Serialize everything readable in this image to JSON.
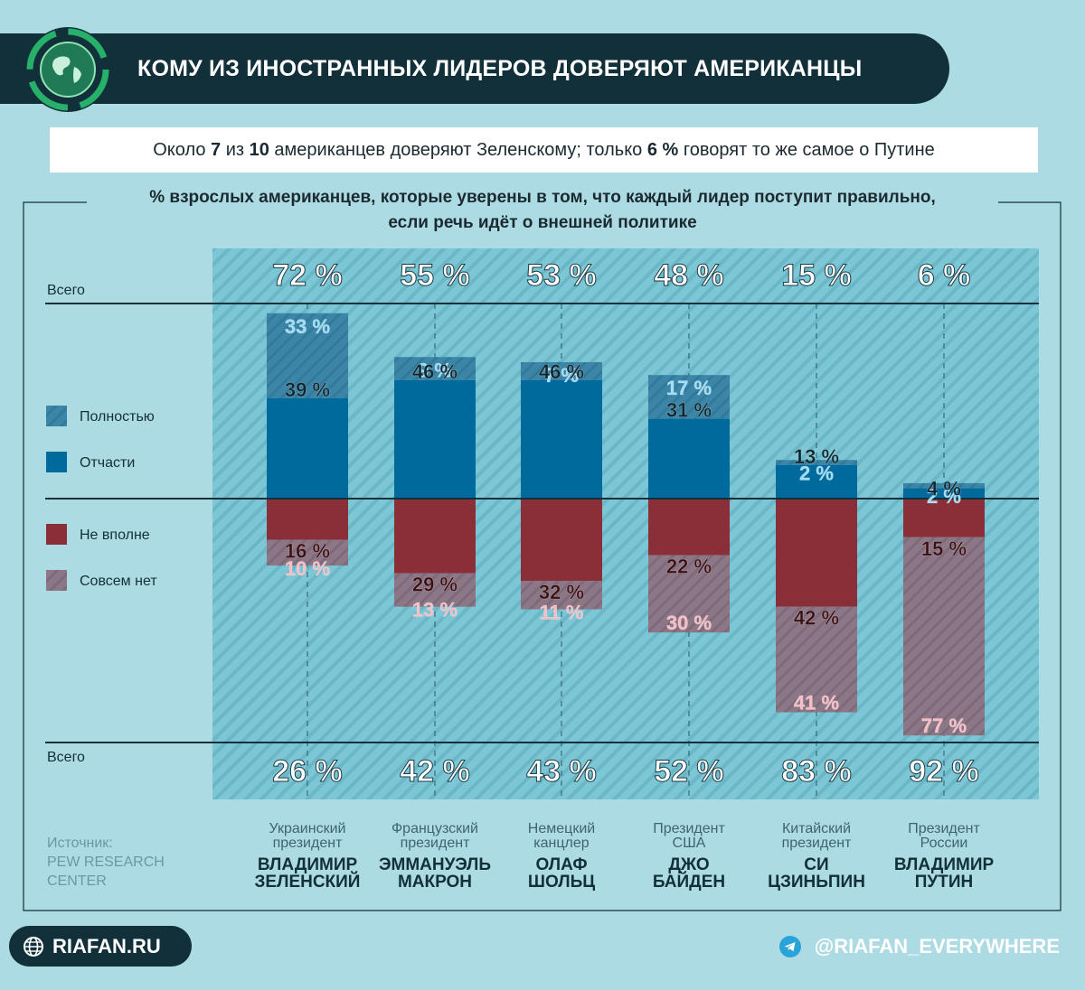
{
  "header": {
    "title": "КОМУ ИЗ ИНОСТРАННЫХ ЛИДЕРОВ ДОВЕРЯЮТ АМЕРИКАНЦЫ"
  },
  "subtitle": {
    "part1": "Около ",
    "num1": "7",
    "part2": " из ",
    "num2": "10",
    "part3": " американцев доверяют Зеленскому; только ",
    "num3": "6 %",
    "part4": " говорят то же самое о Путине"
  },
  "chart_data": {
    "type": "bar",
    "title": "% взрослых американцев, которые уверены в том, что каждый лидер поступит правильно, если речь идёт о внешней политике",
    "total_label": "Всего",
    "legend": [
      {
        "key": "full",
        "label": "Полностью"
      },
      {
        "key": "partly",
        "label": "Отчасти"
      },
      {
        "key": "notquite",
        "label": "Не вполне"
      },
      {
        "key": "none",
        "label": "Совсем нет"
      }
    ],
    "categories": [
      {
        "role": "Украинский президент",
        "name": "ВЛАДИМИР ЗЕЛЕНСКИЙ"
      },
      {
        "role": "Французский президент",
        "name": "ЭММАНУЭЛЬ МАКРОН"
      },
      {
        "role": "Немецкий канцлер",
        "name": "ОЛАФ ШОЛЬЦ"
      },
      {
        "role": "Президент США",
        "name": "ДЖО БАЙДЕН"
      },
      {
        "role": "Китайский президент",
        "name": "СИ ЦЗИНЬПИН"
      },
      {
        "role": "Президент России",
        "name": "ВЛАДИМИР ПУТИН"
      }
    ],
    "series": [
      {
        "name": "Полностью",
        "values": [
          33,
          9,
          7,
          17,
          2,
          2
        ]
      },
      {
        "name": "Отчасти",
        "values": [
          39,
          46,
          46,
          31,
          13,
          4
        ]
      },
      {
        "name": "Не вполне",
        "values": [
          16,
          29,
          32,
          22,
          42,
          15
        ]
      },
      {
        "name": "Совсем нет",
        "values": [
          10,
          13,
          11,
          30,
          41,
          77
        ]
      }
    ],
    "total_confident": [
      72,
      55,
      53,
      48,
      15,
      6
    ],
    "total_not_confident": [
      26,
      42,
      43,
      52,
      83,
      92
    ],
    "colors": {
      "full": "#3b86a8",
      "partly": "#006a9c",
      "notquite": "#8a2f38",
      "none": "#8c7787",
      "label_full": "#9fdcf5",
      "label_partly": "#0c2630",
      "label_notquite": "#3a0d12",
      "label_none": "#f7bcc4"
    }
  },
  "source": {
    "label": "Источник:",
    "name": "PEW RESEARCH CENTER"
  },
  "footer": {
    "site": "RIAFAN.RU",
    "telegram": "@RIAFAN_EVERYWHERE"
  }
}
